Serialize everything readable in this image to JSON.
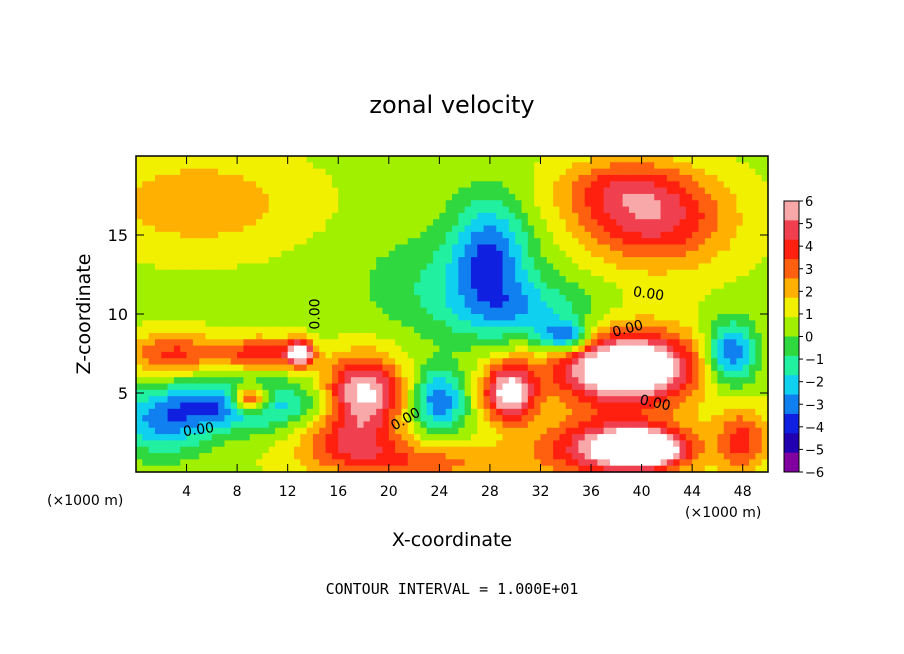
{
  "chart_data": {
    "type": "heatmap",
    "title": "zonal velocity",
    "xlabel": "X-coordinate",
    "ylabel": "Z-coordinate",
    "x_unit_label": "(×1000 m)",
    "x_unit_label_right": "(×1000 m)",
    "xlim": [
      0,
      50
    ],
    "ylim": [
      0,
      20
    ],
    "x_ticks": [
      4,
      8,
      12,
      16,
      20,
      24,
      28,
      32,
      36,
      40,
      44,
      48
    ],
    "y_ticks": [
      5,
      10,
      15
    ],
    "grid": false,
    "contour_interval_text": "CONTOUR INTERVAL = 1.000E+01",
    "contour_labels": [
      {
        "x": 14.5,
        "y": 10.0,
        "text": "0.00",
        "rotate": -90
      },
      {
        "x": 5.0,
        "y": 2.4,
        "text": "0.00",
        "rotate": -8
      },
      {
        "x": 21.5,
        "y": 3.1,
        "text": "0.00",
        "rotate": -30
      },
      {
        "x": 40.5,
        "y": 11.0,
        "text": "0.00",
        "rotate": 8
      },
      {
        "x": 39.0,
        "y": 8.8,
        "text": "0.00",
        "rotate": -15
      },
      {
        "x": 41.0,
        "y": 4.1,
        "text": "0.00",
        "rotate": 12
      }
    ],
    "colorbar": {
      "ticks": [
        "6",
        "5",
        "4",
        "3",
        "2",
        "1",
        "0",
        "−1",
        "−2",
        "−3",
        "−4",
        "−5",
        "−6"
      ],
      "range": [
        -6,
        6
      ],
      "colors": [
        "#f8a8a8",
        "#f04050",
        "#ff2010",
        "#ff6010",
        "#ffb000",
        "#f0f000",
        "#a0f000",
        "#30d840",
        "#20f0a0",
        "#10d0f0",
        "#1080f0",
        "#1020e0",
        "#2000b0",
        "#8000a0"
      ]
    },
    "field_blobs": [
      {
        "x": 5,
        "y": 17,
        "rx": 8,
        "ry": 3,
        "v": 1.8
      },
      {
        "x": 25,
        "y": 12,
        "rx": 7,
        "ry": 3,
        "v": -1.5
      },
      {
        "x": 28,
        "y": 14,
        "rx": 3,
        "ry": 3.5,
        "v": -3.5
      },
      {
        "x": 31,
        "y": 10,
        "rx": 6,
        "ry": 2,
        "v": -2.5
      },
      {
        "x": 41,
        "y": 16,
        "rx": 6,
        "ry": 3,
        "v": 4.0
      },
      {
        "x": 38,
        "y": 18,
        "rx": 5,
        "ry": 2,
        "v": 2.0
      },
      {
        "x": 8,
        "y": 4.3,
        "rx": 6,
        "ry": 1.5,
        "v": -4.0
      },
      {
        "x": 9,
        "y": 4.6,
        "rx": 1.5,
        "ry": 0.8,
        "v": 6.5
      },
      {
        "x": 3,
        "y": 7.5,
        "rx": 4,
        "ry": 1.3,
        "v": 3.0
      },
      {
        "x": 10,
        "y": 7.5,
        "rx": 3,
        "ry": 1,
        "v": 3.5
      },
      {
        "x": 18,
        "y": 5,
        "rx": 3,
        "ry": 2.3,
        "v": 6.0
      },
      {
        "x": 17,
        "y": 2,
        "rx": 4,
        "ry": 1.5,
        "v": 3.0
      },
      {
        "x": 24,
        "y": 4.5,
        "rx": 2,
        "ry": 2,
        "v": -4.0
      },
      {
        "x": 29.5,
        "y": 5,
        "rx": 2,
        "ry": 1.8,
        "v": 6.0
      },
      {
        "x": 39,
        "y": 6.5,
        "rx": 5,
        "ry": 2,
        "v": 6.0
      },
      {
        "x": 38,
        "y": 7,
        "rx": 7,
        "ry": 3,
        "v": 2.5
      },
      {
        "x": 38,
        "y": 1.5,
        "rx": 6,
        "ry": 2,
        "v": 5.0
      },
      {
        "x": 40,
        "y": 1.5,
        "rx": 3,
        "ry": 1,
        "v": 6.5
      },
      {
        "x": 22,
        "y": 0.6,
        "rx": 8,
        "ry": 1.2,
        "v": 2.5
      },
      {
        "x": 47,
        "y": 7.5,
        "rx": 2,
        "ry": 2,
        "v": -4.5
      },
      {
        "x": 48,
        "y": 2,
        "rx": 2,
        "ry": 2,
        "v": 3.0
      },
      {
        "x": 34,
        "y": 8.5,
        "rx": 2,
        "ry": 1,
        "v": -4.5
      },
      {
        "x": 2,
        "y": 3,
        "rx": 4,
        "ry": 2,
        "v": -3.0
      },
      {
        "x": 13,
        "y": 7.5,
        "rx": 1,
        "ry": 0.8,
        "v": 6.5
      }
    ]
  }
}
